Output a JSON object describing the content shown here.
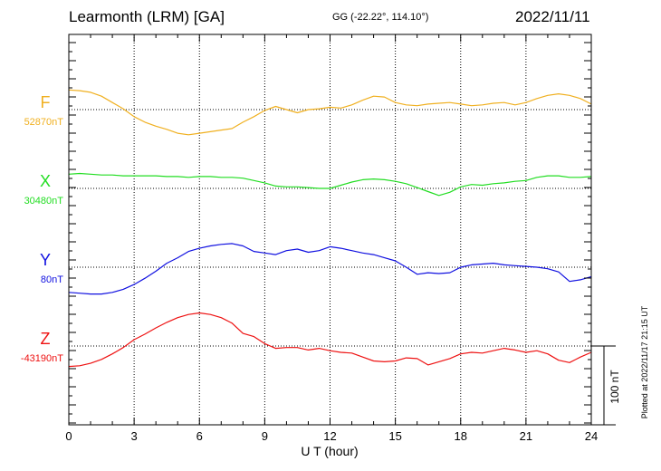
{
  "header": {
    "station": "Learmonth (LRM)  [GA]",
    "coords": "GG (-22.22°, 114.10°)",
    "date": "2022/11/11"
  },
  "colors": {
    "F": "#f0b020",
    "X": "#22dd22",
    "Y": "#1010e0",
    "Z": "#ee1111",
    "axis": "#000000"
  },
  "chart_data": {
    "type": "line",
    "xlabel": "U T (hour)",
    "x_ticks": [
      0,
      3,
      6,
      9,
      12,
      15,
      18,
      21,
      24
    ],
    "xlim": [
      0,
      24
    ],
    "scale_bar": "100 nT",
    "plotted_note": "Plotted at 2022/11/17 21:15 UT",
    "series": [
      {
        "name": "F",
        "baseline_label": "52870nT",
        "baseline": 52870,
        "x": [
          0,
          0.5,
          1,
          1.5,
          2,
          2.5,
          3,
          3.5,
          4,
          4.5,
          5,
          5.5,
          6,
          6.5,
          7,
          7.5,
          8,
          8.5,
          9,
          9.5,
          10,
          10.5,
          11,
          11.5,
          12,
          12.5,
          13,
          13.5,
          14,
          14.5,
          15,
          15.5,
          16,
          16.5,
          17,
          17.5,
          18,
          18.5,
          19,
          19.5,
          20,
          20.5,
          21,
          21.5,
          22,
          22.5,
          23,
          23.5,
          24
        ],
        "y": [
          25,
          24,
          22,
          17,
          9,
          1,
          -9,
          -16,
          -21,
          -25,
          -30,
          -32,
          -30,
          -28,
          -26,
          -24,
          -16,
          -9,
          -1,
          4,
          0,
          -4,
          0,
          1,
          3,
          2,
          6,
          12,
          17,
          16,
          9,
          6,
          5,
          7,
          8,
          9,
          7,
          5,
          6,
          8,
          9,
          6,
          9,
          14,
          18,
          20,
          18,
          14,
          7
        ]
      },
      {
        "name": "X",
        "baseline_label": "30480nT",
        "baseline": 30480,
        "x": [
          0,
          0.5,
          1,
          1.5,
          2,
          2.5,
          3,
          3.5,
          4,
          4.5,
          5,
          5.5,
          6,
          6.5,
          7,
          7.5,
          8,
          8.5,
          9,
          9.5,
          10,
          10.5,
          11,
          11.5,
          12,
          12.5,
          13,
          13.5,
          14,
          14.5,
          15,
          15.5,
          16,
          16.5,
          17,
          17.5,
          18,
          18.5,
          19,
          19.5,
          20,
          20.5,
          21,
          21.5,
          22,
          22.5,
          23,
          23.5,
          24
        ],
        "y": [
          18,
          19,
          18,
          17,
          17,
          16,
          16,
          16,
          16,
          15,
          15,
          14,
          15,
          15,
          14,
          14,
          13,
          10,
          7,
          3,
          2,
          2,
          1,
          0,
          0,
          4,
          8,
          11,
          12,
          11,
          9,
          6,
          1,
          -4,
          -9,
          -5,
          2,
          5,
          4,
          6,
          7,
          9,
          10,
          14,
          16,
          16,
          14,
          14,
          15
        ]
      },
      {
        "name": "Y",
        "baseline_label": "80nT",
        "baseline": 80,
        "x": [
          0,
          0.5,
          1,
          1.5,
          2,
          2.5,
          3,
          3.5,
          4,
          4.5,
          5,
          5.5,
          6,
          6.5,
          7,
          7.5,
          8,
          8.5,
          9,
          9.5,
          10,
          10.5,
          11,
          11.5,
          12,
          12.5,
          13,
          13.5,
          14,
          14.5,
          15,
          15.5,
          16,
          16.5,
          17,
          17.5,
          18,
          18.5,
          19,
          19.5,
          20,
          20.5,
          21,
          21.5,
          22,
          22.5,
          23,
          23.5,
          24
        ],
        "y": [
          -32,
          -33,
          -34,
          -34,
          -32,
          -28,
          -22,
          -14,
          -5,
          5,
          12,
          20,
          24,
          27,
          29,
          30,
          27,
          20,
          18,
          16,
          21,
          23,
          19,
          21,
          26,
          24,
          21,
          18,
          16,
          12,
          8,
          0,
          -9,
          -7,
          -8,
          -7,
          0,
          3,
          4,
          5,
          3,
          2,
          1,
          0,
          -2,
          -6,
          -18,
          -16,
          -12
        ]
      },
      {
        "name": "Z",
        "baseline_label": "-43190nT",
        "baseline": -43190,
        "x": [
          0,
          0.5,
          1,
          1.5,
          2,
          2.5,
          3,
          3.5,
          4,
          4.5,
          5,
          5.5,
          6,
          6.5,
          7,
          7.5,
          8,
          8.5,
          9,
          9.5,
          10,
          10.5,
          11,
          11.5,
          12,
          12.5,
          13,
          13.5,
          14,
          14.5,
          15,
          15.5,
          16,
          16.5,
          17,
          17.5,
          18,
          18.5,
          19,
          19.5,
          20,
          20.5,
          21,
          21.5,
          22,
          22.5,
          23,
          23.5,
          24
        ],
        "y": [
          -26,
          -25,
          -22,
          -17,
          -10,
          -2,
          8,
          15,
          23,
          30,
          36,
          40,
          42,
          40,
          36,
          29,
          16,
          12,
          3,
          -3,
          -2,
          -2,
          -5,
          -3,
          -6,
          -8,
          -9,
          -14,
          -19,
          -20,
          -19,
          -15,
          -16,
          -24,
          -20,
          -16,
          -10,
          -8,
          -9,
          -6,
          -3,
          -5,
          -8,
          -6,
          -10,
          -18,
          -21,
          -14,
          -8
        ]
      }
    ]
  }
}
